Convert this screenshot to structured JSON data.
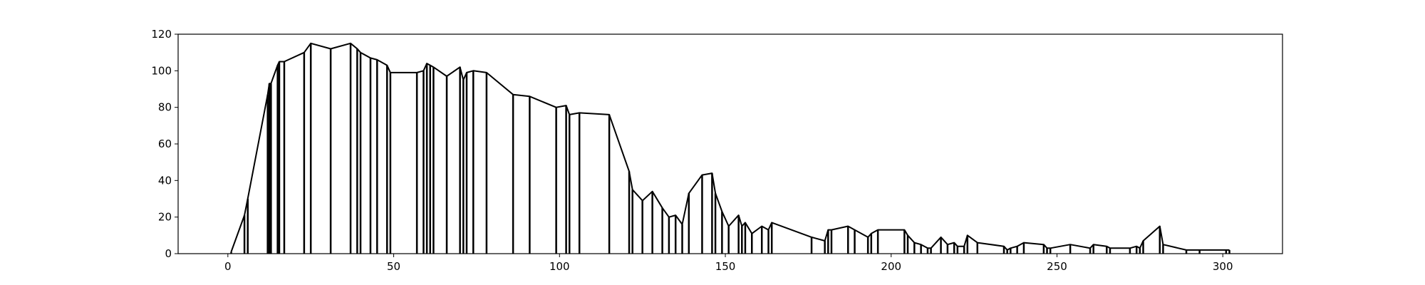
{
  "chart_data": {
    "type": "line",
    "title": "",
    "xlabel": "",
    "ylabel": "",
    "xlim": [
      -15,
      318
    ],
    "ylim": [
      0,
      120
    ],
    "xticks": [
      0,
      50,
      100,
      150,
      200,
      250,
      300
    ],
    "yticks": [
      0,
      20,
      40,
      60,
      80,
      100,
      120
    ],
    "grid": false,
    "legend": "none",
    "color": "#000000",
    "series": [
      {
        "x": [
          1,
          5,
          6,
          12,
          12.5,
          13,
          15,
          15.5,
          17,
          23,
          25,
          31,
          37,
          39,
          40,
          43,
          45,
          48,
          49,
          57,
          59,
          60,
          61,
          62,
          66,
          70,
          71,
          72,
          74,
          78,
          86,
          91,
          99,
          102,
          103,
          106,
          115,
          121,
          122,
          125,
          128,
          131,
          133,
          135,
          137,
          139,
          143,
          146,
          147,
          149,
          151,
          154,
          155,
          156,
          158,
          161,
          163,
          164,
          176,
          180,
          181,
          182,
          187,
          189,
          193,
          194,
          196,
          204,
          205,
          207,
          209,
          211,
          212,
          215,
          217,
          219,
          220,
          222,
          223,
          226,
          234,
          235,
          236,
          238,
          240,
          246,
          247,
          248,
          254,
          260,
          261,
          265,
          266,
          272,
          274,
          275,
          276,
          281,
          282,
          289,
          293,
          301,
          302
        ],
        "y": [
          1,
          21,
          30,
          87,
          93,
          93,
          103,
          105,
          105,
          110,
          115,
          112,
          115,
          112,
          110,
          107,
          106,
          103,
          99,
          99,
          100,
          104,
          103,
          102,
          97,
          102,
          95,
          99,
          100,
          99,
          87,
          86,
          80,
          81,
          76,
          77,
          76,
          45,
          35,
          29,
          34,
          25,
          20,
          21,
          16,
          33,
          43,
          44,
          33,
          23,
          15,
          21,
          15,
          17,
          11,
          15,
          13,
          17,
          9,
          7,
          13,
          13,
          15,
          13,
          9,
          11,
          13,
          13,
          10,
          6,
          5,
          3,
          3,
          9,
          5,
          6,
          4,
          4,
          10,
          6,
          4,
          2,
          3,
          4,
          6,
          5,
          3,
          3,
          5,
          3,
          5,
          4,
          3,
          3,
          4,
          3,
          7,
          15,
          5,
          2,
          2,
          2,
          2
        ]
      }
    ]
  }
}
